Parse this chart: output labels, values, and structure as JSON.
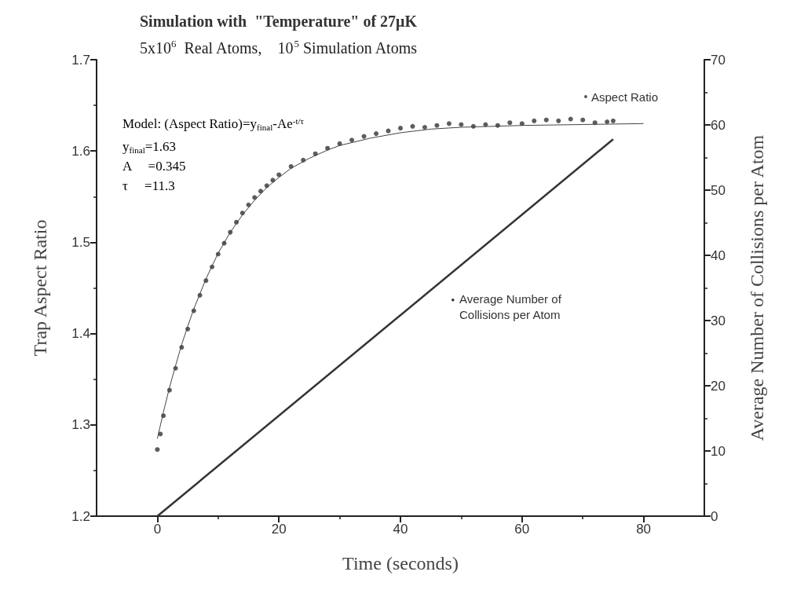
{
  "chart_data": {
    "type": "scatter",
    "title": "Simulation with  \"Temperature\" of 27μK",
    "subtitle": "5x10$^{6}$  Real Atoms,    10$^{5}$ Simulation Atoms",
    "xlabel": "Time (seconds)",
    "ylabel": "Trap Aspect Ratio",
    "y2label": "Average Number of Collisions per Atom",
    "annotations": [
      "Model: (Aspect Ratio)=y$_{final}$-Ae$^{-t/τ}$",
      "y$_{final}$=1.63",
      "A     =0.345",
      "τ     =11.3"
    ],
    "xlim": [
      -10,
      90
    ],
    "xticks": [
      0,
      20,
      40,
      60,
      80
    ],
    "ylim": [
      1.2,
      1.7
    ],
    "yticks": [
      1.2,
      1.3,
      1.4,
      1.5,
      1.6,
      1.7
    ],
    "y2lim": [
      0,
      70
    ],
    "y2ticks": [
      0,
      10,
      20,
      30,
      40,
      50,
      60,
      70
    ],
    "legend": "top right",
    "grid": false,
    "series": [
      {
        "name": "Aspect Ratio",
        "color": "#333333",
        "x": [
          0,
          0.5,
          1,
          2,
          3,
          4,
          5,
          6,
          7,
          8,
          9,
          10,
          11,
          12,
          13,
          14,
          15,
          16,
          17,
          18,
          19,
          20,
          22,
          24,
          26,
          28,
          30,
          32,
          34,
          36,
          38,
          40,
          42,
          44,
          46,
          48,
          50,
          52,
          54,
          56,
          58,
          60,
          62,
          64,
          66,
          68,
          70,
          72,
          74,
          75
        ],
        "values": [
          1.273,
          1.29,
          1.31,
          1.338,
          1.362,
          1.385,
          1.405,
          1.425,
          1.442,
          1.458,
          1.473,
          1.487,
          1.499,
          1.511,
          1.522,
          1.532,
          1.541,
          1.549,
          1.556,
          1.562,
          1.568,
          1.574,
          1.583,
          1.59,
          1.597,
          1.603,
          1.608,
          1.612,
          1.616,
          1.619,
          1.622,
          1.625,
          1.627,
          1.626,
          1.628,
          1.63,
          1.629,
          1.627,
          1.629,
          1.628,
          1.631,
          1.63,
          1.633,
          1.634,
          1.633,
          1.635,
          1.634,
          1.631,
          1.632,
          1.633
        ]
      },
      {
        "type": "line",
        "color": "#444444",
        "x": [
          0,
          1,
          2,
          3,
          4,
          5,
          6,
          8,
          10,
          12,
          14,
          16,
          18,
          20,
          22,
          25,
          28,
          30,
          35,
          40,
          45,
          50,
          60,
          70,
          80
        ],
        "values": [
          1.285,
          1.314,
          1.341,
          1.365,
          1.388,
          1.408,
          1.427,
          1.46,
          1.488,
          1.511,
          1.53,
          1.546,
          1.56,
          1.571,
          1.581,
          1.592,
          1.601,
          1.606,
          1.614,
          1.62,
          1.624,
          1.626,
          1.628,
          1.629,
          1.63
        ]
      },
      {
        "name": "Average Number of\nCollisions per Atom",
        "type": "line",
        "axis": "y2",
        "color": "#333333",
        "x": [
          0,
          75
        ],
        "values": [
          0,
          57.8
        ]
      }
    ]
  }
}
